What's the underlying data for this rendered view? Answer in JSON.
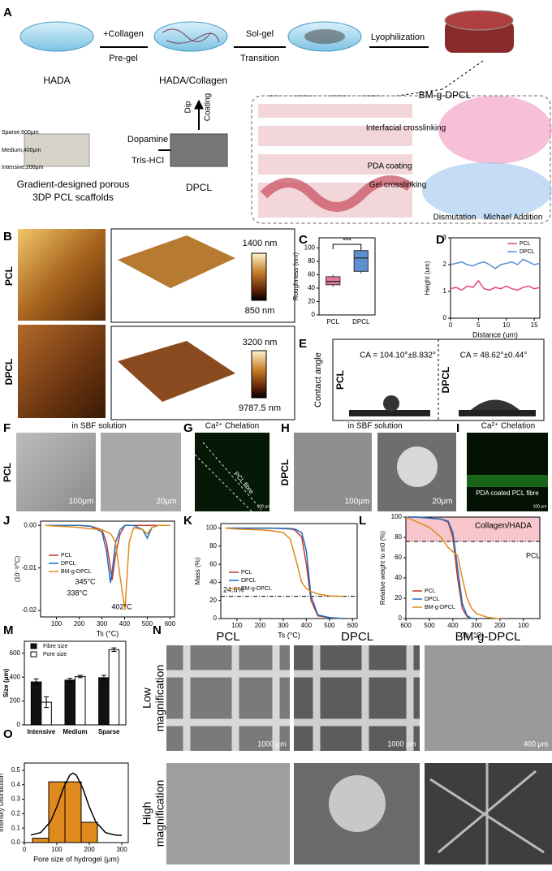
{
  "panels": {
    "letters": [
      "A",
      "B",
      "C",
      "D",
      "E",
      "F",
      "G",
      "H",
      "I",
      "J",
      "K",
      "L",
      "M",
      "N",
      "O"
    ]
  },
  "schematic": {
    "hada": "HADA",
    "collagen_step": "+Collagen",
    "pregel": "Pre-gel",
    "solgel": "Sol-gel",
    "transition": "Transition",
    "lyophilization": "Lyophilization",
    "hada_collagen": "HADA/Collagen",
    "product": "BM-g-DPCL",
    "dip": "Dip",
    "coating": "Coating",
    "dopamine": "Dopamine",
    "tris": "Tris-HCl",
    "sparse": "Sparse,600μm",
    "medium": "Medium,400μm",
    "intensive": "Intensive,200μm",
    "scaffold_line1": "Gradient-designed porous",
    "scaffold_line2": "3DP PCL scaffolds",
    "dpcl": "DPCL",
    "interfacial": "Interfacial crosslinking",
    "pda": "PDA coating",
    "gel": "Gel crosslinking",
    "dismutation": "Dismutation",
    "michael": "Michael Addition"
  },
  "afm": {
    "rows": [
      "PCL",
      "DPCL"
    ],
    "scales": [
      [
        "1400 nm",
        "850 nm"
      ],
      [
        "3200 nm",
        "9787.5 nm"
      ]
    ]
  },
  "contact_angle": {
    "ylabel": "Contact angle",
    "rows": [
      "PCL",
      "DPCL"
    ],
    "values": [
      "CA = 104.10°±8.832°",
      "CA = 48.62°±0.44°"
    ]
  },
  "mineralization": {
    "sbf": "in SBF solution",
    "chelation": "Ca²⁺ Chelation",
    "row_pcl": "PCL",
    "row_dpcl": "DPCL",
    "scale_100": "100μm",
    "scale_20": "20μm",
    "fibre": "PCL fibre",
    "coated_fibre": "PDA coated PCL fibre",
    "scale_small": "100 μm"
  },
  "sem": {
    "columns": [
      "PCL",
      "DPCL",
      "BM-g-DPCL"
    ],
    "low": [
      "Low",
      "magnification"
    ],
    "high": [
      "High",
      "magnification"
    ],
    "scales": [
      "1000 μm",
      "1000 μm",
      "400 μm"
    ]
  },
  "chart_data": [
    {
      "type": "box",
      "ylabel": "Roughness (nm)",
      "categories": [
        "PCL",
        "DPCL"
      ],
      "colors": [
        "#e8799a",
        "#5b8fd1"
      ],
      "boxes": [
        {
          "min": 42,
          "q1": 45,
          "median": 50,
          "q3": 57,
          "max": 60
        },
        {
          "min": 62,
          "q1": 65,
          "median": 85,
          "q3": 96,
          "max": 100
        }
      ],
      "annotation": "***",
      "ylim": [
        0,
        115
      ],
      "yticks": [
        0,
        20,
        40,
        60,
        80,
        100
      ]
    },
    {
      "type": "line",
      "xlabel": "Distance (um)",
      "ylabel": "Height (um)",
      "x": [
        0,
        1,
        2,
        3,
        4,
        5,
        6,
        7,
        8,
        9,
        10,
        11,
        12,
        13,
        14,
        15,
        16
      ],
      "series": [
        {
          "name": "PCL",
          "color": "#e8457a",
          "values": [
            1.1,
            1.15,
            1.05,
            1.2,
            1.15,
            1.4,
            1.1,
            1.05,
            1.15,
            1.1,
            1.2,
            1.1,
            1.05,
            1.15,
            1.2,
            1.1,
            1.15
          ]
        },
        {
          "name": "DPCL",
          "color": "#5b8fd1",
          "values": [
            2.0,
            2.05,
            2.1,
            2.0,
            1.95,
            2.05,
            2.1,
            2.0,
            1.85,
            2.0,
            2.05,
            2.1,
            2.0,
            2.2,
            2.1,
            2.0,
            2.05
          ]
        }
      ],
      "xlim": [
        0,
        16
      ],
      "xticks": [
        0,
        5,
        10,
        15
      ],
      "ylim": [
        0,
        3
      ],
      "yticks": [
        0,
        1,
        2,
        3
      ]
    },
    {
      "type": "line",
      "xlabel": "Ts (°C)",
      "ylabel": "(10⁻³/°C)",
      "x": [
        50,
        100,
        150,
        200,
        250,
        300,
        320,
        338,
        345,
        360,
        380,
        402,
        420,
        440,
        480,
        500,
        520,
        550,
        600
      ],
      "series": [
        {
          "name": "PCL",
          "color": "#c0392b",
          "values": [
            0,
            0,
            0,
            0,
            -0.0002,
            -0.001,
            -0.004,
            -0.01,
            -0.0128,
            -0.007,
            -0.002,
            0,
            0,
            0,
            0,
            0,
            0,
            0,
            0
          ]
        },
        {
          "name": "DPCL",
          "color": "#1f6fc0",
          "values": [
            0,
            0,
            0,
            0,
            -0.0002,
            -0.0015,
            -0.006,
            -0.0135,
            -0.011,
            -0.004,
            -0.001,
            0,
            0,
            0,
            -0.001,
            -0.003,
            -0.0005,
            0,
            0
          ]
        },
        {
          "name": "BM-g-DPCL",
          "color": "#e08a1e",
          "values": [
            0,
            -0.0002,
            -0.0003,
            -0.0005,
            -0.0008,
            -0.001,
            -0.0015,
            -0.002,
            -0.0025,
            -0.004,
            -0.012,
            -0.0198,
            -0.004,
            -0.0005,
            -0.001,
            -0.002,
            -0.0005,
            0,
            0
          ]
        }
      ],
      "annotations": [
        "345°C",
        "338°C",
        "402°C"
      ],
      "xlim": [
        30,
        620
      ],
      "xticks": [
        100,
        200,
        300,
        400,
        500,
        600
      ],
      "ylim": [
        -0.0215,
        0.001
      ],
      "yticks": [
        {
          "value": 0,
          "label": "0.00"
        },
        -0.01,
        -0.02
      ]
    },
    {
      "type": "line",
      "xlabel": "Ts (°C)",
      "ylabel": "Mass (%)",
      "x": [
        50,
        100,
        200,
        250,
        300,
        330,
        350,
        380,
        400,
        420,
        450,
        500,
        560
      ],
      "series": [
        {
          "name": "PCL",
          "color": "#c0392b",
          "values": [
            100,
            100,
            100,
            100,
            99.5,
            99,
            98,
            90,
            60,
            20,
            3,
            1,
            0
          ]
        },
        {
          "name": "DPCL",
          "color": "#1f6fc0",
          "values": [
            100,
            100,
            100,
            100,
            99.8,
            99.5,
            99,
            95,
            75,
            25,
            4,
            1,
            0
          ]
        },
        {
          "name": "BM-g-DPCL",
          "color": "#e08a1e",
          "values": [
            100,
            99,
            98,
            97,
            95,
            88,
            70,
            40,
            33,
            30,
            27,
            25,
            24.6
          ]
        }
      ],
      "reference": {
        "value": 24.6,
        "label": "24.6%"
      },
      "xlim": [
        30,
        620
      ],
      "xticks": [
        100,
        200,
        300,
        400,
        500,
        600
      ],
      "ylim": [
        0,
        105
      ],
      "yticks": [
        0,
        20,
        40,
        60,
        80,
        100
      ]
    },
    {
      "type": "line",
      "xlabel": "Ts (°C)",
      "ylabel": "Relative weight to m0 (%)",
      "x": [
        600,
        550,
        500,
        450,
        420,
        400,
        380,
        360,
        340,
        320,
        300,
        250,
        200
      ],
      "series": [
        {
          "name": "PCL",
          "color": "#c0392b",
          "values": [
            100,
            100,
            99,
            98,
            95,
            80,
            40,
            10,
            2,
            0,
            0,
            null,
            null
          ]
        },
        {
          "name": "DPCL",
          "color": "#1f6fc0",
          "values": [
            100,
            100,
            99,
            98,
            96,
            85,
            50,
            15,
            3,
            0,
            0,
            null,
            null
          ]
        },
        {
          "name": "BM-g-DPCL",
          "color": "#e08a1e",
          "values": [
            100,
            95,
            90,
            80,
            70,
            66,
            62,
            40,
            20,
            10,
            5,
            1,
            0
          ]
        }
      ],
      "shaded": {
        "range": [
          76,
          100
        ],
        "label": "Collagen/HADA",
        "color": "#f7c6cc"
      },
      "reference": {
        "value": 76,
        "text": "PCL"
      },
      "xlim": [
        600,
        30
      ],
      "xticks": [
        600,
        500,
        400,
        300,
        200,
        100
      ],
      "ylim": [
        0,
        100
      ],
      "yticks": [
        0,
        20,
        40,
        60,
        80,
        100
      ]
    },
    {
      "type": "bar",
      "ylabel": "Size (μm)",
      "categories": [
        "Intensive",
        "Medium",
        "Sparse"
      ],
      "series": [
        {
          "name": "Fibre size",
          "color": "#111111",
          "values": [
            360,
            375,
            395
          ],
          "errors": [
            25,
            15,
            20
          ]
        },
        {
          "name": "Pore size",
          "color": "#ffffff",
          "values": [
            190,
            405,
            630
          ],
          "errors": [
            45,
            10,
            15
          ]
        }
      ],
      "ylim": [
        0,
        700
      ],
      "yticks": [
        0,
        200,
        400,
        600
      ]
    },
    {
      "type": "histogram",
      "xlabel": "Pore size of hydrogel (μm)",
      "ylabel": "Intensity Distribution",
      "bins": [
        25,
        75,
        125,
        175,
        225
      ],
      "values": [
        0.03,
        0.42,
        0.42,
        0.14
      ],
      "color": "#e08a1e",
      "fit": {
        "x": [
          20,
          50,
          80,
          100,
          120,
          140,
          150,
          160,
          180,
          200,
          220,
          250,
          280,
          300
        ],
        "values": [
          0.052,
          0.069,
          0.143,
          0.247,
          0.375,
          0.467,
          0.48,
          0.467,
          0.375,
          0.247,
          0.143,
          0.069,
          0.052,
          0.05
        ],
        "color": "#000000"
      },
      "xlim": [
        0,
        320
      ],
      "xticks": [
        0,
        100,
        200,
        300
      ],
      "ylim": [
        0,
        0.55
      ],
      "yticks": [
        {
          "value": 0,
          "label": "0.0"
        },
        0.1,
        0.2,
        0.3,
        0.4,
        0.5
      ]
    }
  ]
}
